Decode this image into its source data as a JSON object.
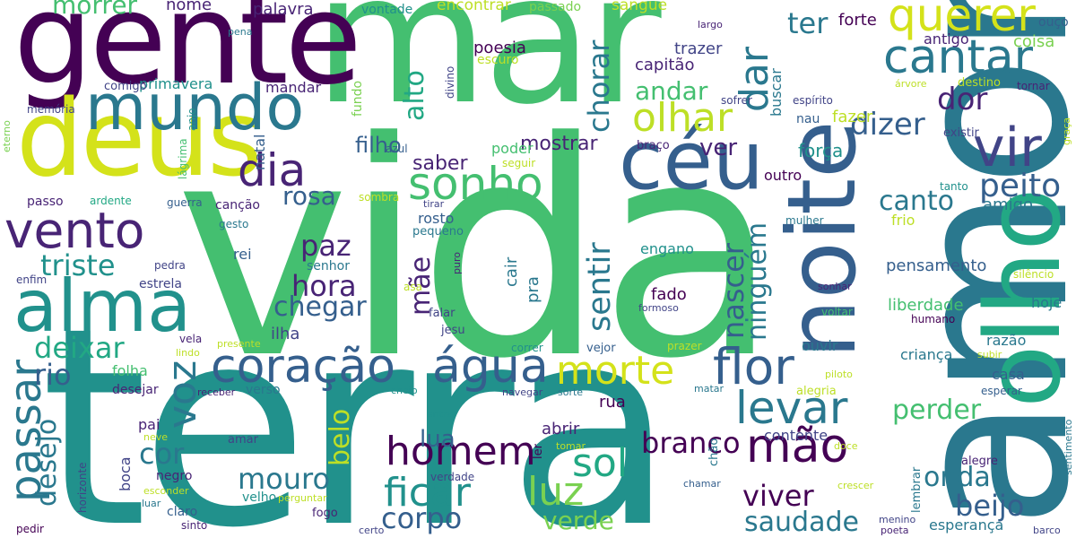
{
  "colors": {
    "dark_purple": "#440154",
    "indigo": "#482475",
    "deep_blue": "#414487",
    "slate_blue": "#355f8d",
    "steel_blue": "#2a788e",
    "teal": "#21918c",
    "sea_green": "#22a884",
    "green": "#44bf70",
    "light_green": "#7ad151",
    "lime": "#bddf26",
    "yellow_green": "#d4e21a",
    "background": "#ffffff"
  },
  "words": [
    {
      "id": "vida",
      "text": "vida",
      "color": "#44bf70"
    },
    {
      "id": "terra",
      "text": "terra",
      "color": "#21918c"
    },
    {
      "id": "mar",
      "text": "mar",
      "color": "#44bf70"
    },
    {
      "id": "amor",
      "text": "amor",
      "color": "#2a788e"
    },
    {
      "id": "gente",
      "text": "gente",
      "color": "#440154"
    },
    {
      "id": "deus",
      "text": "deus",
      "color": "#d4e21a"
    },
    {
      "id": "noite",
      "text": "noite",
      "color": "#355f8d"
    },
    {
      "id": "olho",
      "text": "olho",
      "color": "#22a884"
    },
    {
      "id": "mundo",
      "text": "mundo",
      "color": "#2a788e"
    },
    {
      "id": "alma",
      "text": "alma",
      "color": "#21918c"
    },
    {
      "id": "ceu",
      "text": "céu",
      "color": "#355f8d"
    },
    {
      "id": "coracao",
      "text": "coração",
      "color": "#355f8d"
    },
    {
      "id": "agua",
      "text": "água",
      "color": "#355f8d"
    },
    {
      "id": "vento",
      "text": "vento",
      "color": "#482475"
    },
    {
      "id": "querer",
      "text": "querer",
      "color": "#d4e21a"
    },
    {
      "id": "cantar",
      "text": "cantar",
      "color": "#2a788e"
    },
    {
      "id": "sonho",
      "text": "sonho",
      "color": "#44bf70"
    },
    {
      "id": "dia",
      "text": "dia",
      "color": "#482475"
    },
    {
      "id": "olhar",
      "text": "olhar",
      "color": "#bddf26"
    },
    {
      "id": "morte",
      "text": "morte",
      "color": "#d4e21a"
    },
    {
      "id": "flor",
      "text": "flor",
      "color": "#355f8d"
    },
    {
      "id": "passar",
      "text": "passar",
      "color": "#2a788e"
    },
    {
      "id": "vir",
      "text": "vir",
      "color": "#414487"
    },
    {
      "id": "dar",
      "text": "dar",
      "color": "#2a788e"
    },
    {
      "id": "levar",
      "text": "levar",
      "color": "#2a788e"
    },
    {
      "id": "homem",
      "text": "homem",
      "color": "#440154"
    },
    {
      "id": "mao",
      "text": "mão",
      "color": "#440154"
    },
    {
      "id": "luz",
      "text": "luz",
      "color": "#7ad151"
    },
    {
      "id": "ficar",
      "text": "ficar",
      "color": "#21918c"
    },
    {
      "id": "voz",
      "text": "voz",
      "color": "#2a788e"
    },
    {
      "id": "sol",
      "text": "sol",
      "color": "#22a884"
    },
    {
      "id": "deixar",
      "text": "deixar",
      "color": "#22a884"
    },
    {
      "id": "triste",
      "text": "triste",
      "color": "#21918c"
    },
    {
      "id": "rio",
      "text": "rio",
      "color": "#355f8d"
    },
    {
      "id": "mouro",
      "text": "mouro",
      "color": "#2a788e"
    },
    {
      "id": "corpo",
      "text": "corpo",
      "color": "#355f8d"
    },
    {
      "id": "desejo",
      "text": "desejo",
      "color": "#2a788e"
    },
    {
      "id": "cor",
      "text": "cor",
      "color": "#2a788e"
    },
    {
      "id": "hora",
      "text": "hora",
      "color": "#482475"
    },
    {
      "id": "chegar",
      "text": "chegar",
      "color": "#355f8d"
    },
    {
      "id": "paz",
      "text": "paz",
      "color": "#482475"
    },
    {
      "id": "rosa",
      "text": "rosa",
      "color": "#355f8d"
    },
    {
      "id": "sentir",
      "text": "sentir",
      "color": "#2a788e"
    },
    {
      "id": "nascer",
      "text": "nascer",
      "color": "#355f8d"
    },
    {
      "id": "ninguem",
      "text": "ninguém",
      "color": "#2a788e"
    },
    {
      "id": "chorar",
      "text": "chorar",
      "color": "#2a788e"
    },
    {
      "id": "alto",
      "text": "alto",
      "color": "#22a884"
    },
    {
      "id": "ter",
      "text": "ter",
      "color": "#2a788e"
    },
    {
      "id": "dizer",
      "text": "dizer",
      "color": "#355f8d"
    },
    {
      "id": "dor",
      "text": "dor",
      "color": "#482475"
    },
    {
      "id": "peito",
      "text": "peito",
      "color": "#355f8d"
    },
    {
      "id": "canto",
      "text": "canto",
      "color": "#2a788e"
    },
    {
      "id": "viver",
      "text": "viver",
      "color": "#440154"
    },
    {
      "id": "saudade",
      "text": "saudade",
      "color": "#2a788e"
    },
    {
      "id": "verde",
      "text": "verde",
      "color": "#7ad151"
    },
    {
      "id": "branco",
      "text": "branco",
      "color": "#440154"
    },
    {
      "id": "lua",
      "text": "lua",
      "color": "#355f8d"
    },
    {
      "id": "beijo",
      "text": "beijo",
      "color": "#355f8d"
    },
    {
      "id": "onda",
      "text": "onda",
      "color": "#2a788e"
    },
    {
      "id": "perder",
      "text": "perder",
      "color": "#44bf70"
    },
    {
      "id": "belo",
      "text": "belo",
      "color": "#bddf26"
    },
    {
      "id": "mae",
      "text": "mãe",
      "color": "#482475"
    },
    {
      "id": "andar",
      "text": "andar",
      "color": "#44bf70"
    },
    {
      "id": "saber",
      "text": "saber",
      "color": "#482475"
    },
    {
      "id": "filho",
      "text": "filho",
      "color": "#355f8d"
    },
    {
      "id": "mostrar",
      "text": "mostrar",
      "color": "#482475"
    },
    {
      "id": "ver",
      "text": "ver",
      "color": "#482475"
    },
    {
      "id": "forca",
      "text": "força",
      "color": "#21918c"
    },
    {
      "id": "fazer",
      "text": "fazer",
      "color": "#bddf26"
    },
    {
      "id": "forte",
      "text": "forte",
      "color": "#440154"
    },
    {
      "id": "morrer",
      "text": "morrer",
      "color": "#44bf70"
    },
    {
      "id": "nome",
      "text": "nome",
      "color": "#482475"
    },
    {
      "id": "palavra",
      "text": "palavra",
      "color": "#482475"
    },
    {
      "id": "vontade",
      "text": "vontade",
      "color": "#21918c"
    },
    {
      "id": "encontrar",
      "text": "encontrar",
      "color": "#bddf26"
    },
    {
      "id": "passado",
      "text": "passado",
      "color": "#7ad151"
    },
    {
      "id": "sangue",
      "text": "sangue",
      "color": "#bddf26"
    },
    {
      "id": "ouco",
      "text": "ouço",
      "color": "#355f8d"
    },
    {
      "id": "largo",
      "text": "largo",
      "color": "#482475"
    },
    {
      "id": "antigo",
      "text": "antigo",
      "color": "#482475"
    },
    {
      "id": "coisa",
      "text": "coisa",
      "color": "#7ad151"
    },
    {
      "id": "trazer",
      "text": "trazer",
      "color": "#414487"
    },
    {
      "id": "capitao",
      "text": "capitão",
      "color": "#482475"
    },
    {
      "id": "poesia",
      "text": "poesia",
      "color": "#440154"
    },
    {
      "id": "escuro",
      "text": "escuro",
      "color": "#bddf26"
    },
    {
      "id": "primavera",
      "text": "primavera",
      "color": "#21918c"
    },
    {
      "id": "mandar",
      "text": "mandar",
      "color": "#482475"
    },
    {
      "id": "comigo",
      "text": "comigo",
      "color": "#414487"
    },
    {
      "id": "pena",
      "text": "pena",
      "color": "#2a788e"
    },
    {
      "id": "memoria",
      "text": "memória",
      "color": "#414487"
    },
    {
      "id": "eterno",
      "text": "eterno",
      "color": "#7ad151"
    },
    {
      "id": "anjo",
      "text": "anjo",
      "color": "#21918c"
    },
    {
      "id": "natal",
      "text": "natal",
      "color": "#355f8d"
    },
    {
      "id": "lagrima",
      "text": "lágrima",
      "color": "#44bf70"
    },
    {
      "id": "divino",
      "text": "divino",
      "color": "#414487"
    },
    {
      "id": "fundo",
      "text": "fundo",
      "color": "#7ad151"
    },
    {
      "id": "azul",
      "text": "azul",
      "color": "#355f8d"
    },
    {
      "id": "poder",
      "text": "poder",
      "color": "#44bf70"
    },
    {
      "id": "seguir",
      "text": "seguir",
      "color": "#bddf26"
    },
    {
      "id": "braco",
      "text": "braço",
      "color": "#482475"
    },
    {
      "id": "sofrer",
      "text": "sofrer",
      "color": "#414487"
    },
    {
      "id": "buscar",
      "text": "buscar",
      "color": "#2a788e"
    },
    {
      "id": "nau",
      "text": "nau",
      "color": "#355f8d"
    },
    {
      "id": "espirito",
      "text": "espírito",
      "color": "#414487"
    },
    {
      "id": "arvore",
      "text": "árvore",
      "color": "#bddf26"
    },
    {
      "id": "destino",
      "text": "destino",
      "color": "#bddf26"
    },
    {
      "id": "tornar",
      "text": "tornar",
      "color": "#482475"
    },
    {
      "id": "existir",
      "text": "existir",
      "color": "#414487"
    },
    {
      "id": "graca",
      "text": "graça",
      "color": "#bddf26"
    },
    {
      "id": "outro",
      "text": "outro",
      "color": "#440154"
    },
    {
      "id": "tanto",
      "text": "tanto",
      "color": "#21918c"
    },
    {
      "id": "frio",
      "text": "frio",
      "color": "#bddf26"
    },
    {
      "id": "amigo",
      "text": "amigo",
      "color": "#2a788e"
    },
    {
      "id": "mulher",
      "text": "mulher",
      "color": "#2a788e"
    },
    {
      "id": "silencio",
      "text": "silêncio",
      "color": "#bddf26"
    },
    {
      "id": "hoje",
      "text": "hoje",
      "color": "#2a788e"
    },
    {
      "id": "liberdade",
      "text": "liberdade",
      "color": "#44bf70"
    },
    {
      "id": "humano",
      "text": "humano",
      "color": "#440154"
    },
    {
      "id": "voltar",
      "text": "voltar",
      "color": "#44bf70"
    },
    {
      "id": "sonhar",
      "text": "sonhar",
      "color": "#482475"
    },
    {
      "id": "pensamento",
      "text": "pensamento",
      "color": "#355f8d"
    },
    {
      "id": "engano",
      "text": "engano",
      "color": "#21918c"
    },
    {
      "id": "fado",
      "text": "fado",
      "color": "#440154"
    },
    {
      "id": "formoso",
      "text": "formoso",
      "color": "#414487"
    },
    {
      "id": "cair",
      "text": "cair",
      "color": "#2a788e"
    },
    {
      "id": "pra",
      "text": "pra",
      "color": "#2a788e"
    },
    {
      "id": "ouvir",
      "text": "ouvir",
      "color": "#2a788e"
    },
    {
      "id": "razao",
      "text": "razão",
      "color": "#2a788e"
    },
    {
      "id": "crianca",
      "text": "criança",
      "color": "#2a788e"
    },
    {
      "id": "subir",
      "text": "subir",
      "color": "#bddf26"
    },
    {
      "id": "casa",
      "text": "casa",
      "color": "#355f8d"
    },
    {
      "id": "esperar",
      "text": "esperar",
      "color": "#355f8d"
    },
    {
      "id": "alegria",
      "text": "alegria",
      "color": "#bddf26"
    },
    {
      "id": "piloto",
      "text": "piloto",
      "color": "#bddf26"
    },
    {
      "id": "prazer",
      "text": "prazer",
      "color": "#bddf26"
    },
    {
      "id": "vejor",
      "text": "vejor",
      "color": "#355f8d"
    },
    {
      "id": "correr",
      "text": "correr",
      "color": "#21918c"
    },
    {
      "id": "jesu",
      "text": "jesu",
      "color": "#414487"
    },
    {
      "id": "falar",
      "text": "falar",
      "color": "#414487"
    },
    {
      "id": "asa",
      "text": "asa",
      "color": "#bddf26"
    },
    {
      "id": "puro",
      "text": "puro",
      "color": "#482475"
    },
    {
      "id": "rosto",
      "text": "rosto",
      "color": "#355f8d"
    },
    {
      "id": "pequeno",
      "text": "pequeno",
      "color": "#2a788e"
    },
    {
      "id": "tirar",
      "text": "tirar",
      "color": "#414487"
    },
    {
      "id": "sombra",
      "text": "sombra",
      "color": "#bddf26"
    },
    {
      "id": "cancao",
      "text": "canção",
      "color": "#482475"
    },
    {
      "id": "gesto",
      "text": "gesto",
      "color": "#2a788e"
    },
    {
      "id": "rei",
      "text": "rei",
      "color": "#355f8d"
    },
    {
      "id": "senhor",
      "text": "senhor",
      "color": "#2a788e"
    },
    {
      "id": "ilha",
      "text": "ilha",
      "color": "#414487"
    },
    {
      "id": "pedra",
      "text": "pedra",
      "color": "#414487"
    },
    {
      "id": "estrela",
      "text": "estrela",
      "color": "#414487"
    },
    {
      "id": "enfim",
      "text": "enfim",
      "color": "#414487"
    },
    {
      "id": "passo",
      "text": "passo",
      "color": "#482475"
    },
    {
      "id": "ardente",
      "text": "ardente",
      "color": "#22a884"
    },
    {
      "id": "guerra",
      "text": "guerra",
      "color": "#355f8d"
    },
    {
      "id": "vela",
      "text": "vela",
      "color": "#482475"
    },
    {
      "id": "lindo",
      "text": "lindo",
      "color": "#bddf26"
    },
    {
      "id": "presente",
      "text": "presente",
      "color": "#bddf26"
    },
    {
      "id": "folha",
      "text": "folha",
      "color": "#44bf70"
    },
    {
      "id": "desejar",
      "text": "desejar",
      "color": "#482475"
    },
    {
      "id": "receber",
      "text": "receber",
      "color": "#482475"
    },
    {
      "id": "verso",
      "text": "verso",
      "color": "#2a788e"
    },
    {
      "id": "cheio",
      "text": "cheio",
      "color": "#21918c"
    },
    {
      "id": "navegar",
      "text": "navegar",
      "color": "#414487"
    },
    {
      "id": "sorte",
      "text": "sorte",
      "color": "#2a788e"
    },
    {
      "id": "rua",
      "text": "rua",
      "color": "#440154"
    },
    {
      "id": "entrar",
      "text": "entrar",
      "color": "#21918c"
    },
    {
      "id": "abrir",
      "text": "abrir",
      "color": "#482475"
    },
    {
      "id": "tomar",
      "text": "tomar",
      "color": "#bddf26"
    },
    {
      "id": "pai",
      "text": "pai",
      "color": "#482475"
    },
    {
      "id": "neve",
      "text": "neve",
      "color": "#bddf26"
    },
    {
      "id": "amar",
      "text": "amar",
      "color": "#414487"
    },
    {
      "id": "boca",
      "text": "boca",
      "color": "#414487"
    },
    {
      "id": "negro",
      "text": "negro",
      "color": "#482475"
    },
    {
      "id": "verdade",
      "text": "verdade",
      "color": "#414487"
    },
    {
      "id": "ler",
      "text": "ler",
      "color": "#440154"
    },
    {
      "id": "chao",
      "text": "chão",
      "color": "#2a788e"
    },
    {
      "id": "chamar",
      "text": "chamar",
      "color": "#355f8d"
    },
    {
      "id": "matar",
      "text": "matar",
      "color": "#2a788e"
    },
    {
      "id": "contente",
      "text": "contente",
      "color": "#414487"
    },
    {
      "id": "doce",
      "text": "doce",
      "color": "#bddf26"
    },
    {
      "id": "alegre",
      "text": "alegre",
      "color": "#482475"
    },
    {
      "id": "lembrar",
      "text": "lembrar",
      "color": "#2a788e"
    },
    {
      "id": "crescer",
      "text": "crescer",
      "color": "#bddf26"
    },
    {
      "id": "menino",
      "text": "menino",
      "color": "#414487"
    },
    {
      "id": "poeta",
      "text": "poeta",
      "color": "#482475"
    },
    {
      "id": "esperanca",
      "text": "esperança",
      "color": "#2a788e"
    },
    {
      "id": "barco",
      "text": "barco",
      "color": "#414487"
    },
    {
      "id": "sentimento",
      "text": "sentimento",
      "color": "#2a788e"
    },
    {
      "id": "horizonte",
      "text": "horizonte",
      "color": "#414487"
    },
    {
      "id": "pedir",
      "text": "pedir",
      "color": "#440154"
    },
    {
      "id": "esconder",
      "text": "esconder",
      "color": "#bddf26"
    },
    {
      "id": "luar",
      "text": "luar",
      "color": "#2a788e"
    },
    {
      "id": "sinto",
      "text": "sinto",
      "color": "#482475"
    },
    {
      "id": "claro",
      "text": "claro",
      "color": "#355f8d"
    },
    {
      "id": "velho",
      "text": "velho",
      "color": "#21918c"
    },
    {
      "id": "perguntar",
      "text": "perguntar",
      "color": "#bddf26"
    },
    {
      "id": "fogo",
      "text": "fogo",
      "color": "#482475"
    },
    {
      "id": "certo",
      "text": "certo",
      "color": "#414487"
    }
  ]
}
